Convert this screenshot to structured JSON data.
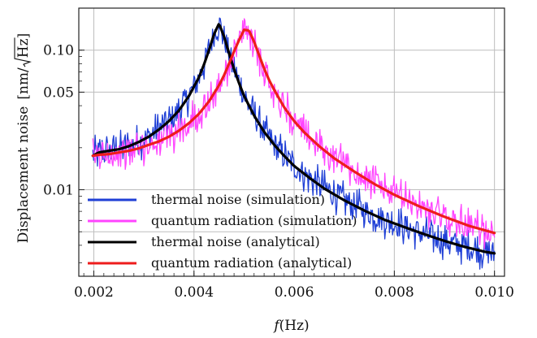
{
  "chart_data": {
    "type": "line",
    "xlabel_italic": "f",
    "xlabel_rest": "(Hz)",
    "ylabel_main": "Displacement noise",
    "ylabel_unit_open": "[nm/",
    "ylabel_unit_hz": "Hz",
    "ylabel_unit_close": "]",
    "x_scale": "linear",
    "y_scale": "log",
    "xlim": [
      0.0017,
      0.0102
    ],
    "ylim": [
      0.0024,
      0.2
    ],
    "grid": true,
    "legend_placement": "bottom-left",
    "x_ticks": [
      {
        "value": 0.002,
        "label": "0.002"
      },
      {
        "value": 0.004,
        "label": "0.004"
      },
      {
        "value": 0.006,
        "label": "0.006"
      },
      {
        "value": 0.008,
        "label": "0.008"
      },
      {
        "value": 0.01,
        "label": "0.010"
      }
    ],
    "y_ticks": [
      {
        "value": 0.01,
        "label": "0.01"
      },
      {
        "value": 0.05,
        "label": "0.05"
      },
      {
        "value": 0.1,
        "label": "0.10"
      }
    ],
    "y_extra_gridlines": [
      0.005
    ],
    "legend": [
      {
        "label": "thermal noise (simulation)",
        "color": "#1f3fd6"
      },
      {
        "label": "quantum radiation (simulation)",
        "color": "#ff44ff"
      },
      {
        "label": "thermal noise (analytical)",
        "color": "#000000"
      },
      {
        "label": "quantum radiation (analytical)",
        "color": "#ee1c1c"
      }
    ],
    "series": [
      {
        "name": "thermal noise (simulation)",
        "color": "#1f3fd6",
        "style": "noisy",
        "x": [
          0.00198,
          0.0021,
          0.0023,
          0.0025,
          0.0027,
          0.0029,
          0.0031,
          0.0033,
          0.0035,
          0.0037,
          0.0039,
          0.0041,
          0.0042,
          0.0043,
          0.0044,
          0.0045,
          0.0046,
          0.0047,
          0.0048,
          0.0049,
          0.005,
          0.0052,
          0.0054,
          0.0056,
          0.0058,
          0.006,
          0.0063,
          0.0066,
          0.007,
          0.0074,
          0.0078,
          0.0082,
          0.0086,
          0.009,
          0.0094,
          0.0098,
          0.01
        ],
        "values": [
          0.0175,
          0.0185,
          0.019,
          0.0195,
          0.0205,
          0.022,
          0.024,
          0.027,
          0.031,
          0.037,
          0.047,
          0.064,
          0.079,
          0.1,
          0.13,
          0.155,
          0.125,
          0.095,
          0.073,
          0.058,
          0.047,
          0.034,
          0.026,
          0.021,
          0.0175,
          0.0148,
          0.0122,
          0.0102,
          0.0084,
          0.0071,
          0.0061,
          0.0054,
          0.0048,
          0.0043,
          0.0039,
          0.0036,
          0.0035
        ]
      },
      {
        "name": "quantum radiation (simulation)",
        "color": "#ff44ff",
        "style": "noisy",
        "x": [
          0.00198,
          0.0021,
          0.0023,
          0.0025,
          0.0027,
          0.0029,
          0.0031,
          0.0033,
          0.0035,
          0.0037,
          0.0039,
          0.0041,
          0.0043,
          0.0045,
          0.0046,
          0.0047,
          0.0048,
          0.0049,
          0.005,
          0.0051,
          0.0052,
          0.0053,
          0.0054,
          0.0055,
          0.0056,
          0.0058,
          0.006,
          0.0062,
          0.0065,
          0.0068,
          0.0072,
          0.0076,
          0.008,
          0.0085,
          0.009,
          0.0095,
          0.01
        ],
        "values": [
          0.0175,
          0.0178,
          0.018,
          0.0185,
          0.019,
          0.0198,
          0.021,
          0.0222,
          0.024,
          0.0265,
          0.03,
          0.035,
          0.043,
          0.056,
          0.066,
          0.08,
          0.098,
          0.118,
          0.14,
          0.138,
          0.115,
          0.092,
          0.074,
          0.061,
          0.052,
          0.039,
          0.031,
          0.0258,
          0.0205,
          0.0168,
          0.0135,
          0.011,
          0.0092,
          0.0076,
          0.0064,
          0.0055,
          0.0049
        ]
      },
      {
        "name": "thermal noise (analytical)",
        "color": "#000000",
        "style": "smooth",
        "x": [
          0.00198,
          0.0021,
          0.0023,
          0.0025,
          0.0027,
          0.0029,
          0.0031,
          0.0033,
          0.0035,
          0.0037,
          0.0039,
          0.0041,
          0.0042,
          0.0043,
          0.0044,
          0.0045,
          0.0046,
          0.0047,
          0.0048,
          0.0049,
          0.005,
          0.0052,
          0.0054,
          0.0056,
          0.0058,
          0.006,
          0.0063,
          0.0066,
          0.007,
          0.0074,
          0.0078,
          0.0082,
          0.0086,
          0.009,
          0.0094,
          0.0098,
          0.01
        ],
        "values": [
          0.0175,
          0.0185,
          0.019,
          0.0195,
          0.0205,
          0.022,
          0.024,
          0.027,
          0.031,
          0.037,
          0.047,
          0.064,
          0.079,
          0.1,
          0.13,
          0.155,
          0.125,
          0.095,
          0.073,
          0.058,
          0.047,
          0.034,
          0.026,
          0.021,
          0.0175,
          0.0148,
          0.0122,
          0.0102,
          0.0084,
          0.0071,
          0.0061,
          0.0054,
          0.0048,
          0.0043,
          0.0039,
          0.0036,
          0.0035
        ]
      },
      {
        "name": "quantum radiation (analytical)",
        "color": "#ee1c1c",
        "style": "smooth",
        "x": [
          0.00198,
          0.0021,
          0.0023,
          0.0025,
          0.0027,
          0.0029,
          0.0031,
          0.0033,
          0.0035,
          0.0037,
          0.0039,
          0.0041,
          0.0043,
          0.0045,
          0.0046,
          0.0047,
          0.0048,
          0.0049,
          0.005,
          0.0051,
          0.0052,
          0.0053,
          0.0054,
          0.0055,
          0.0056,
          0.0058,
          0.006,
          0.0062,
          0.0065,
          0.0068,
          0.0072,
          0.0076,
          0.008,
          0.0085,
          0.009,
          0.0095,
          0.01
        ],
        "values": [
          0.0175,
          0.0178,
          0.018,
          0.0185,
          0.019,
          0.0198,
          0.021,
          0.0222,
          0.024,
          0.0265,
          0.03,
          0.035,
          0.043,
          0.056,
          0.066,
          0.08,
          0.098,
          0.118,
          0.14,
          0.138,
          0.115,
          0.092,
          0.074,
          0.061,
          0.052,
          0.039,
          0.031,
          0.0258,
          0.0205,
          0.0168,
          0.0135,
          0.011,
          0.0092,
          0.0076,
          0.0064,
          0.0055,
          0.0049
        ]
      }
    ]
  }
}
